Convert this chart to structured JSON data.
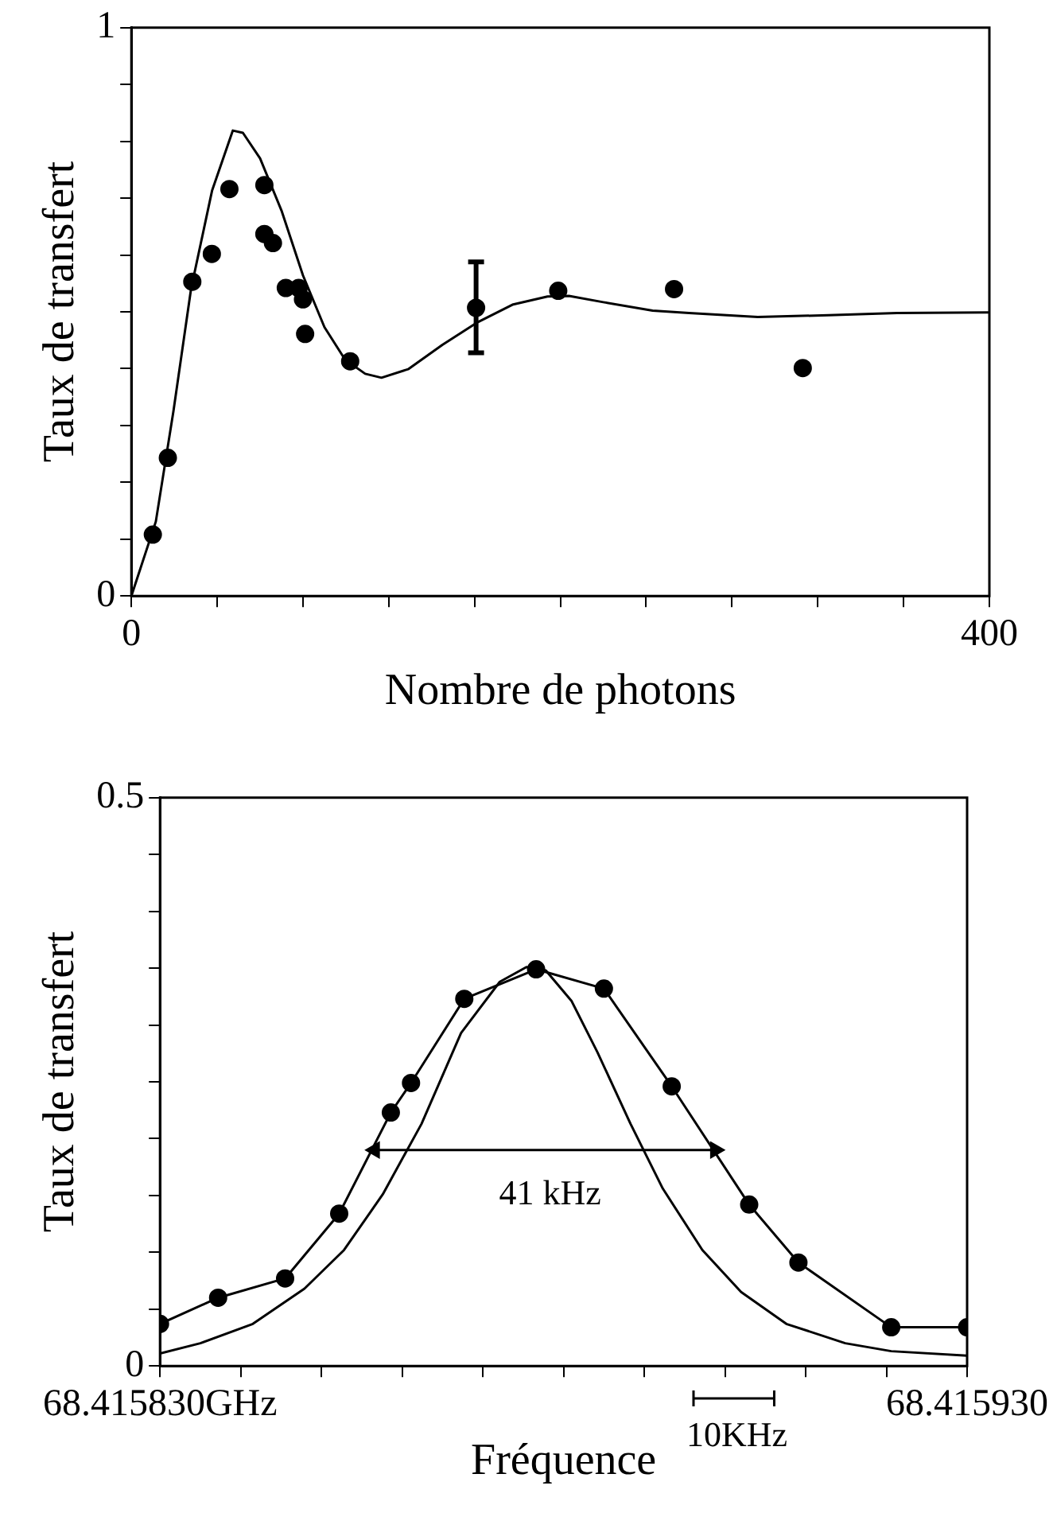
{
  "chart_data": [
    {
      "type": "scatter",
      "xlabel": "Nombre de photons",
      "ylabel": "Taux de transfert",
      "xlim": [
        0,
        400
      ],
      "xticks": [
        0,
        {
          "value": 40,
          "label": null
        },
        {
          "value": 80,
          "label": null
        },
        {
          "value": 120,
          "label": null
        },
        {
          "value": 160,
          "label": null
        },
        {
          "value": 200,
          "label": null
        },
        {
          "value": 240,
          "label": null
        },
        {
          "value": 280,
          "label": null
        },
        {
          "value": 320,
          "label": null
        },
        {
          "value": 360,
          "label": null
        },
        400
      ],
      "ylim": [
        0,
        1
      ],
      "yticks": [
        0,
        {
          "value": 0.1,
          "label": null
        },
        {
          "value": 0.2,
          "label": null
        },
        {
          "value": 0.3,
          "label": null
        },
        {
          "value": 0.4,
          "label": null
        },
        {
          "value": 0.5,
          "label": null
        },
        {
          "value": 0.6,
          "label": null
        },
        {
          "value": 0.7,
          "label": null
        },
        {
          "value": 0.8,
          "label": null
        },
        {
          "value": 0.9,
          "label": null
        },
        1
      ],
      "grid": false,
      "legend": false,
      "series": [
        {
          "type": "line",
          "color": "#000000",
          "marker": "none",
          "x": [
            0,
            11.4,
            19.6,
            27.8,
            37.6,
            47.3,
            52,
            60,
            70,
            80,
            90,
            99.6,
            109,
            116.6,
            129,
            145,
            161.6,
            178,
            194,
            204,
            220,
            243,
            260,
            292,
            325,
            357,
            400
          ],
          "values": [
            0,
            0.131,
            0.325,
            0.54,
            0.713,
            0.819,
            0.815,
            0.77,
            0.678,
            0.564,
            0.473,
            0.416,
            0.391,
            0.384,
            0.399,
            0.442,
            0.482,
            0.513,
            0.527,
            0.528,
            0.517,
            0.502,
            0.498,
            0.491,
            0.494,
            0.498,
            0.499
          ]
        },
        {
          "color": "#000000",
          "marker": "circle",
          "x": [
            10,
            17,
            28.4,
            37.5,
            45.7,
            62,
            62,
            66,
            72,
            78,
            80,
            81,
            102,
            160.7,
            199,
            253,
            313
          ],
          "values": [
            0.108,
            0.243,
            0.553,
            0.602,
            0.716,
            0.723,
            0.637,
            0.621,
            0.542,
            0.542,
            0.522,
            0.461,
            0.413,
            0.507,
            0.537,
            0.54,
            0.401
          ],
          "errors": [
            null,
            null,
            null,
            null,
            null,
            null,
            null,
            null,
            null,
            null,
            null,
            null,
            null,
            [
              0.428,
              0.588
            ],
            null,
            null,
            null
          ]
        }
      ]
    },
    {
      "type": "line",
      "xlabel": "Fréquence",
      "ylabel": "Taux de transfert",
      "xlim": [
        68.41583,
        68.41593
      ],
      "xticks": [
        {
          "value": 68.41583,
          "label": "68.415830GHz"
        },
        {
          "value": 68.41584,
          "label": null
        },
        {
          "value": 68.41585,
          "label": null
        },
        {
          "value": 68.41586,
          "label": null
        },
        {
          "value": 68.41587,
          "label": null
        },
        {
          "value": 68.41588,
          "label": null
        },
        {
          "value": 68.41589,
          "label": null
        },
        {
          "value": 68.4159,
          "label": null
        },
        {
          "value": 68.41591,
          "label": null
        },
        {
          "value": 68.41592,
          "label": null
        },
        {
          "value": 68.41593,
          "label": "68.415930"
        }
      ],
      "ylim": [
        0,
        0.5
      ],
      "yticks": [
        0,
        {
          "value": 0.05,
          "label": null
        },
        {
          "value": 0.1,
          "label": null
        },
        {
          "value": 0.15,
          "label": null
        },
        {
          "value": 0.2,
          "label": null
        },
        {
          "value": 0.25,
          "label": null
        },
        {
          "value": 0.3,
          "label": null
        },
        {
          "value": 0.35,
          "label": null
        },
        {
          "value": 0.4,
          "label": null
        },
        {
          "value": 0.45,
          "label": null
        },
        0.5
      ],
      "grid": false,
      "legend": false,
      "annotations": [
        "41 kHz",
        "10KHz"
      ],
      "series": [
        {
          "color": "#000000",
          "marker": "circle",
          "x": [
            68.41583,
            68.4158372,
            68.4158455,
            68.4158522,
            68.4158586,
            68.4158611,
            68.4158677,
            68.4158766,
            68.415885,
            68.4158934,
            68.415903,
            68.4159091,
            68.4159206,
            68.41593
          ],
          "values": [
            0.037,
            0.06,
            0.077,
            0.134,
            0.223,
            0.249,
            0.323,
            0.349,
            0.332,
            0.246,
            0.142,
            0.091,
            0.034,
            0.034
          ]
        },
        {
          "color": "#000000",
          "marker": "triangle",
          "x": [
            68.4158566,
            68.4158988
          ],
          "values": [
            0.19,
            0.19
          ]
        },
        {
          "color": "#000000",
          "marker": "none",
          "x": [
            68.41583,
            68.415835,
            68.4158415,
            68.4158479,
            68.4158528,
            68.4158576,
            68.4158624,
            68.4158673,
            68.4158721,
            68.4158754,
            68.4158778,
            68.415881,
            68.4158842,
            68.4158883,
            68.4158923,
            68.4158972,
            68.415902,
            68.4159076,
            68.4159149,
            68.4159206,
            68.41593
          ],
          "values": [
            0.011,
            0.02,
            0.037,
            0.068,
            0.102,
            0.151,
            0.213,
            0.293,
            0.338,
            0.351,
            0.348,
            0.321,
            0.276,
            0.213,
            0.156,
            0.102,
            0.065,
            0.037,
            0.02,
            0.013,
            0.009
          ]
        }
      ]
    }
  ]
}
